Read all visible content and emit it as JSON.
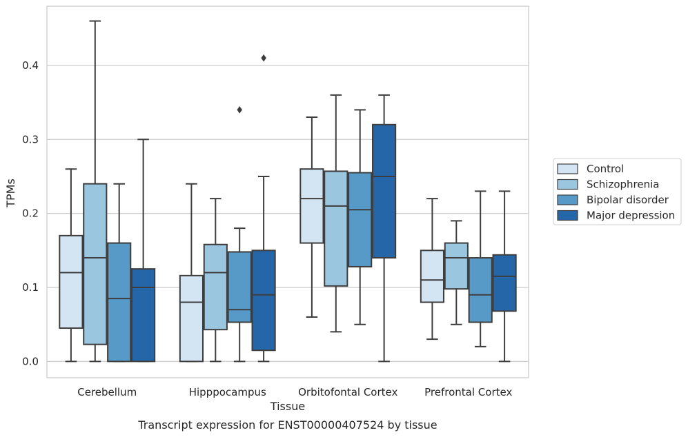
{
  "chart_data": {
    "type": "box",
    "title": "",
    "caption": "Transcript expression for ENST00000407524 by tissue",
    "xlabel": "Tissue",
    "ylabel": "TPMs",
    "ylim": [
      -0.022,
      0.48
    ],
    "yticks": [
      0.0,
      0.1,
      0.2,
      0.3,
      0.4
    ],
    "ytick_labels": [
      "0.0",
      "0.1",
      "0.2",
      "0.3",
      "0.4"
    ],
    "grid": "horizontal",
    "legend_position": "right",
    "categories": [
      "Cerebellum",
      "Hipppocampus",
      "Orbitofontal Cortex",
      "Prefrontal Cortex"
    ],
    "series": [
      {
        "name": "Control",
        "color": "#d3e4f3",
        "boxes": [
          {
            "whislo": 0.0,
            "q1": 0.045,
            "med": 0.12,
            "q3": 0.17,
            "whishi": 0.26,
            "fliers": []
          },
          {
            "whislo": 0.0,
            "q1": 0.0,
            "med": 0.08,
            "q3": 0.116,
            "whishi": 0.24,
            "fliers": []
          },
          {
            "whislo": 0.06,
            "q1": 0.16,
            "med": 0.22,
            "q3": 0.26,
            "whishi": 0.33,
            "fliers": []
          },
          {
            "whislo": 0.03,
            "q1": 0.08,
            "med": 0.11,
            "q3": 0.15,
            "whishi": 0.22,
            "fliers": []
          }
        ]
      },
      {
        "name": "Schizophrenia",
        "color": "#9ac6e0",
        "boxes": [
          {
            "whislo": 0.0,
            "q1": 0.023,
            "med": 0.14,
            "q3": 0.24,
            "whishi": 0.46,
            "fliers": []
          },
          {
            "whislo": 0.0,
            "q1": 0.043,
            "med": 0.12,
            "q3": 0.158,
            "whishi": 0.22,
            "fliers": []
          },
          {
            "whislo": 0.04,
            "q1": 0.102,
            "med": 0.21,
            "q3": 0.257,
            "whishi": 0.36,
            "fliers": []
          },
          {
            "whislo": 0.05,
            "q1": 0.098,
            "med": 0.14,
            "q3": 0.16,
            "whishi": 0.19,
            "fliers": []
          }
        ]
      },
      {
        "name": "Bipolar disorder",
        "color": "#5799c7",
        "boxes": [
          {
            "whislo": 0.0,
            "q1": 0.0,
            "med": 0.085,
            "q3": 0.16,
            "whishi": 0.24,
            "fliers": []
          },
          {
            "whislo": 0.0,
            "q1": 0.053,
            "med": 0.07,
            "q3": 0.148,
            "whishi": 0.18,
            "fliers": [
              0.34
            ]
          },
          {
            "whislo": 0.05,
            "q1": 0.128,
            "med": 0.205,
            "q3": 0.255,
            "whishi": 0.34,
            "fliers": []
          },
          {
            "whislo": 0.02,
            "q1": 0.053,
            "med": 0.09,
            "q3": 0.14,
            "whishi": 0.23,
            "fliers": []
          }
        ]
      },
      {
        "name": "Major depression",
        "color": "#2566a8",
        "boxes": [
          {
            "whislo": 0.0,
            "q1": 0.0,
            "med": 0.1,
            "q3": 0.125,
            "whishi": 0.3,
            "fliers": []
          },
          {
            "whislo": 0.0,
            "q1": 0.015,
            "med": 0.09,
            "q3": 0.15,
            "whishi": 0.25,
            "fliers": [
              0.41
            ]
          },
          {
            "whislo": 0.0,
            "q1": 0.14,
            "med": 0.25,
            "q3": 0.32,
            "whishi": 0.36,
            "fliers": []
          },
          {
            "whislo": 0.0,
            "q1": 0.068,
            "med": 0.115,
            "q3": 0.144,
            "whishi": 0.23,
            "fliers": []
          }
        ]
      }
    ]
  }
}
